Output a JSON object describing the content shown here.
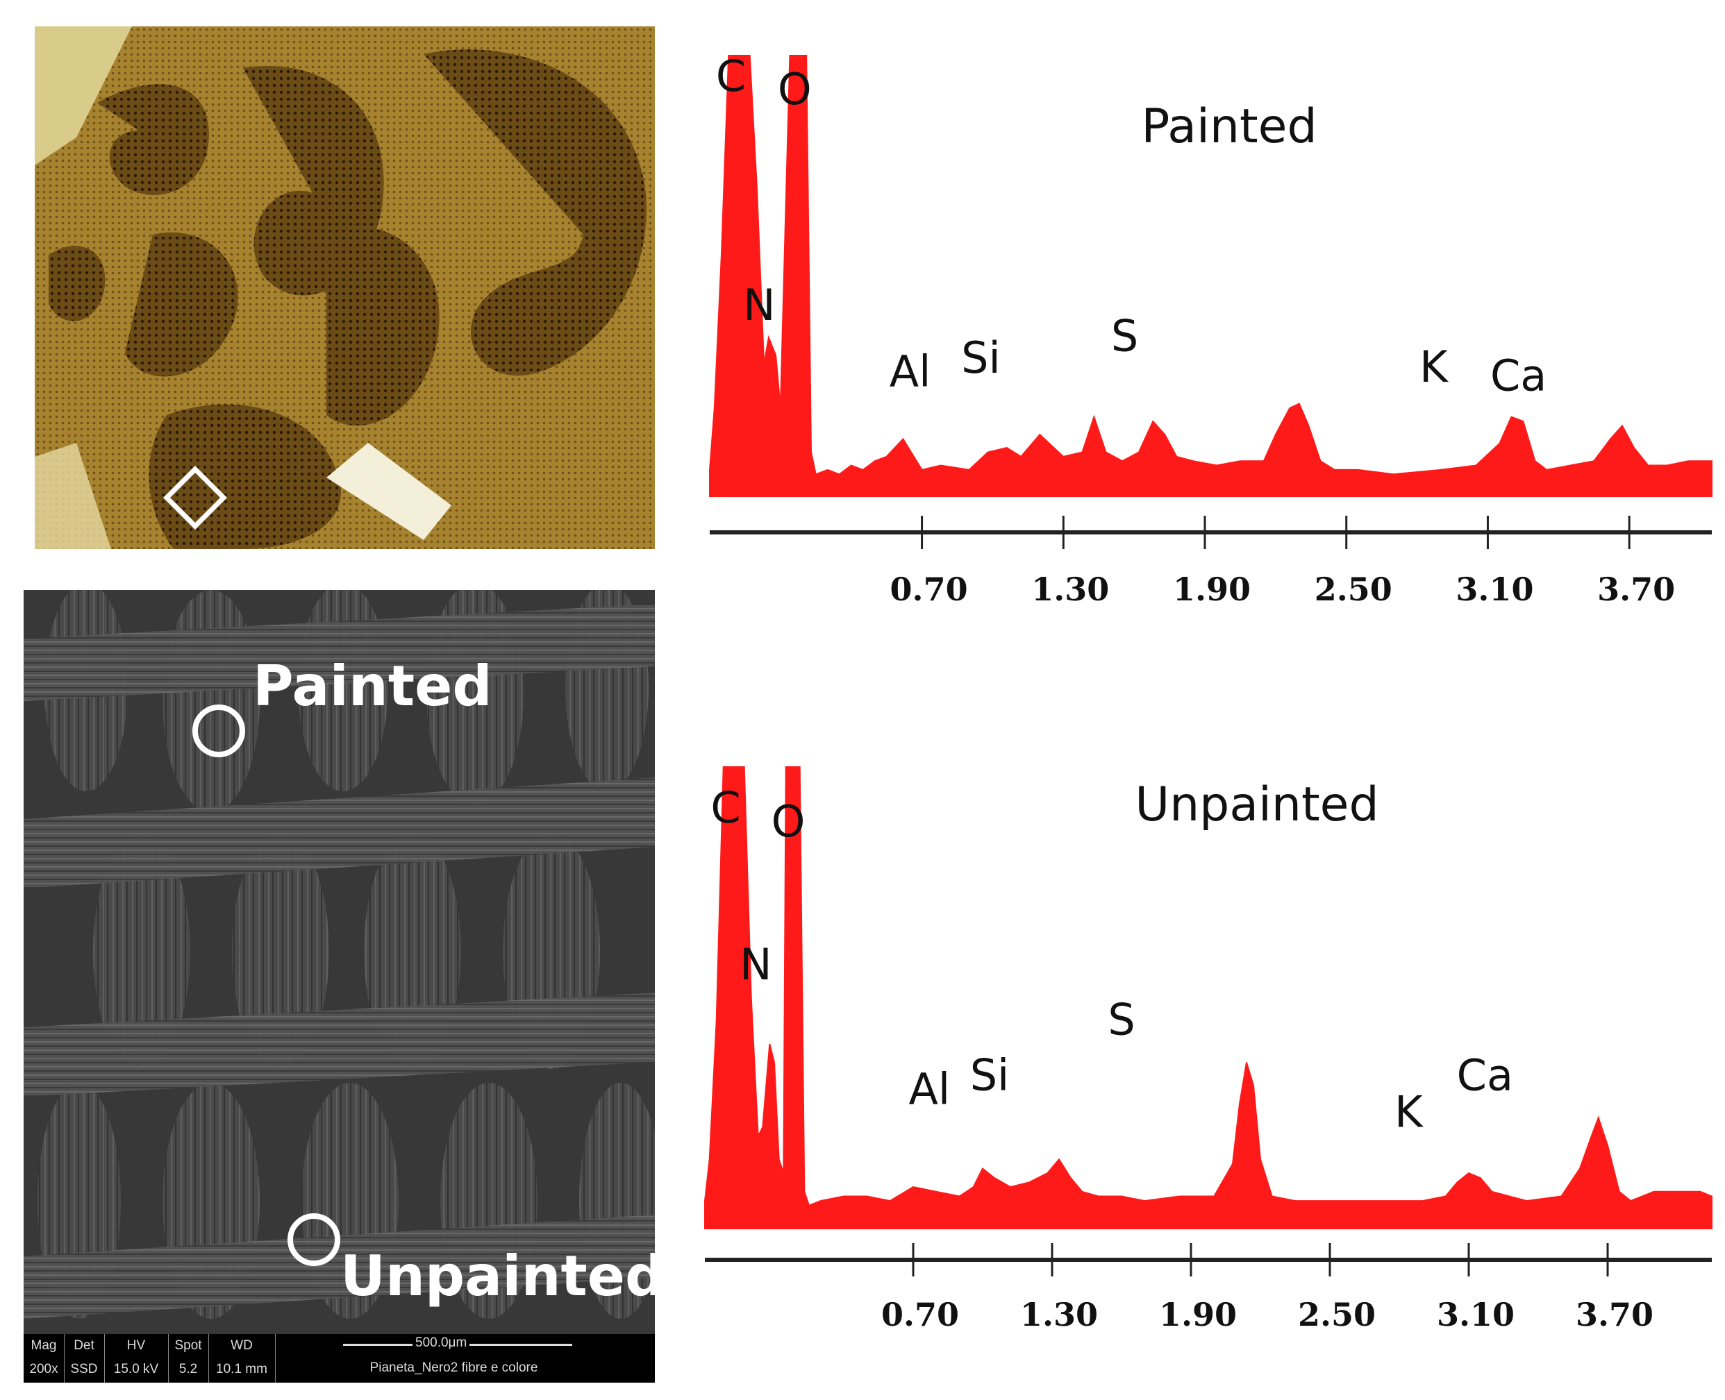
{
  "sem": {
    "label_painted": "Painted",
    "label_unpainted": "Unpainted",
    "databar": {
      "headers": [
        "Mag",
        "Det",
        "HV",
        "Spot",
        "WD"
      ],
      "values": [
        "200x",
        "SSD",
        "15.0 kV",
        "5.2",
        "10.1 mm"
      ],
      "scale": "500.0μm",
      "sample": "Pianeta_Nero2 fibre e colore"
    }
  },
  "colors": {
    "spectrum": "#ff1a1a",
    "axis": "#222222"
  },
  "chart_data": [
    {
      "type": "area",
      "title": "Painted",
      "xlabel": "",
      "ylabel": "",
      "xlim": [
        -0.2,
        4.05
      ],
      "ylim": [
        0,
        100
      ],
      "xticks": [
        "0.70",
        "1.30",
        "1.90",
        "2.50",
        "3.10",
        "3.70"
      ],
      "tick_values": [
        0.7,
        1.3,
        1.9,
        2.5,
        3.1,
        3.7
      ],
      "series": [
        {
          "x": [
            -0.2,
            -0.18,
            -0.15,
            -0.12,
            -0.09,
            -0.06,
            -0.03,
            0.0,
            0.03,
            0.05,
            0.08,
            0.1,
            0.12,
            0.14,
            0.15,
            0.17,
            0.19,
            0.21,
            0.23,
            0.25,
            0.3,
            0.35,
            0.4,
            0.45,
            0.5,
            0.55,
            0.62,
            0.7,
            0.78,
            0.9,
            0.98,
            1.06,
            1.12,
            1.2,
            1.3,
            1.38,
            1.43,
            1.48,
            1.55,
            1.62,
            1.68,
            1.73,
            1.78,
            1.85,
            1.95,
            2.05,
            2.15,
            2.2,
            2.26,
            2.3,
            2.34,
            2.39,
            2.45,
            2.55,
            2.7,
            2.9,
            3.05,
            3.15,
            3.2,
            3.25,
            3.3,
            3.35,
            3.45,
            3.55,
            3.62,
            3.67,
            3.72,
            3.78,
            3.86,
            3.95,
            4.05
          ],
          "y": [
            6,
            20,
            55,
            100,
            100,
            100,
            100,
            70,
            30,
            36,
            32,
            20,
            60,
            100,
            100,
            100,
            100,
            100,
            10,
            5,
            6,
            5,
            7,
            6,
            8,
            9,
            13,
            6,
            7,
            6,
            10,
            11,
            9,
            14,
            9,
            10,
            18,
            10,
            8,
            10,
            17,
            14,
            9,
            8,
            7,
            8,
            8,
            14,
            20,
            21,
            16,
            8,
            6,
            6,
            5,
            6,
            7,
            12,
            18,
            17,
            8,
            6,
            7,
            8,
            13,
            16,
            11,
            7,
            7,
            8,
            8
          ]
        }
      ],
      "peaks": [
        {
          "label": "C",
          "x": -0.11,
          "y": 92
        },
        {
          "label": "O",
          "x": 0.16,
          "y": 89
        },
        {
          "label": "N",
          "x": 0.01,
          "y": 40
        },
        {
          "label": "Al",
          "x": 0.65,
          "y": 25
        },
        {
          "label": "Si",
          "x": 0.95,
          "y": 28
        },
        {
          "label": "S",
          "x": 1.56,
          "y": 33
        },
        {
          "label": "K",
          "x": 2.87,
          "y": 26
        },
        {
          "label": "Ca",
          "x": 3.23,
          "y": 24
        }
      ]
    },
    {
      "type": "area",
      "title": "Unpainted",
      "xlabel": "",
      "ylabel": "",
      "xlim": [
        -0.2,
        4.15
      ],
      "ylim": [
        0,
        100
      ],
      "xticks": [
        "0.70",
        "1.30",
        "1.90",
        "2.50",
        "3.10",
        "3.70"
      ],
      "tick_values": [
        0.7,
        1.3,
        1.9,
        2.5,
        3.1,
        3.7
      ],
      "series": [
        {
          "x": [
            -0.2,
            -0.18,
            -0.15,
            -0.12,
            -0.09,
            -0.06,
            -0.03,
            0.0,
            0.03,
            0.05,
            0.08,
            0.1,
            0.12,
            0.14,
            0.15,
            0.17,
            0.19,
            0.21,
            0.23,
            0.25,
            0.3,
            0.4,
            0.5,
            0.6,
            0.7,
            0.8,
            0.9,
            0.96,
            1.0,
            1.05,
            1.12,
            1.2,
            1.28,
            1.33,
            1.38,
            1.43,
            1.5,
            1.6,
            1.7,
            1.85,
            2.0,
            2.08,
            2.11,
            2.14,
            2.17,
            2.2,
            2.25,
            2.35,
            2.5,
            2.7,
            2.9,
            3.0,
            3.05,
            3.1,
            3.15,
            3.2,
            3.35,
            3.5,
            3.58,
            3.63,
            3.66,
            3.7,
            3.75,
            3.8,
            3.9,
            4.0,
            4.1,
            4.15
          ],
          "y": [
            6,
            15,
            45,
            100,
            100,
            100,
            100,
            50,
            20,
            22,
            40,
            36,
            15,
            12,
            100,
            100,
            100,
            100,
            8,
            5,
            6,
            7,
            7,
            6,
            9,
            8,
            7,
            9,
            13,
            11,
            9,
            10,
            12,
            15,
            11,
            8,
            7,
            7,
            6,
            7,
            7,
            14,
            27,
            36,
            31,
            15,
            7,
            6,
            6,
            6,
            6,
            7,
            10,
            12,
            11,
            8,
            6,
            7,
            13,
            20,
            24,
            18,
            8,
            6,
            8,
            8,
            8,
            7
          ]
        }
      ],
      "peaks": [
        {
          "label": "C",
          "x": -0.11,
          "y": 88
        },
        {
          "label": "O",
          "x": 0.16,
          "y": 85
        },
        {
          "label": "N",
          "x": 0.02,
          "y": 54
        },
        {
          "label": "Al",
          "x": 0.77,
          "y": 27
        },
        {
          "label": "Si",
          "x": 1.03,
          "y": 30
        },
        {
          "label": "S",
          "x": 1.6,
          "y": 42
        },
        {
          "label": "K",
          "x": 2.84,
          "y": 22
        },
        {
          "label": "Ca",
          "x": 3.17,
          "y": 30
        }
      ]
    }
  ]
}
